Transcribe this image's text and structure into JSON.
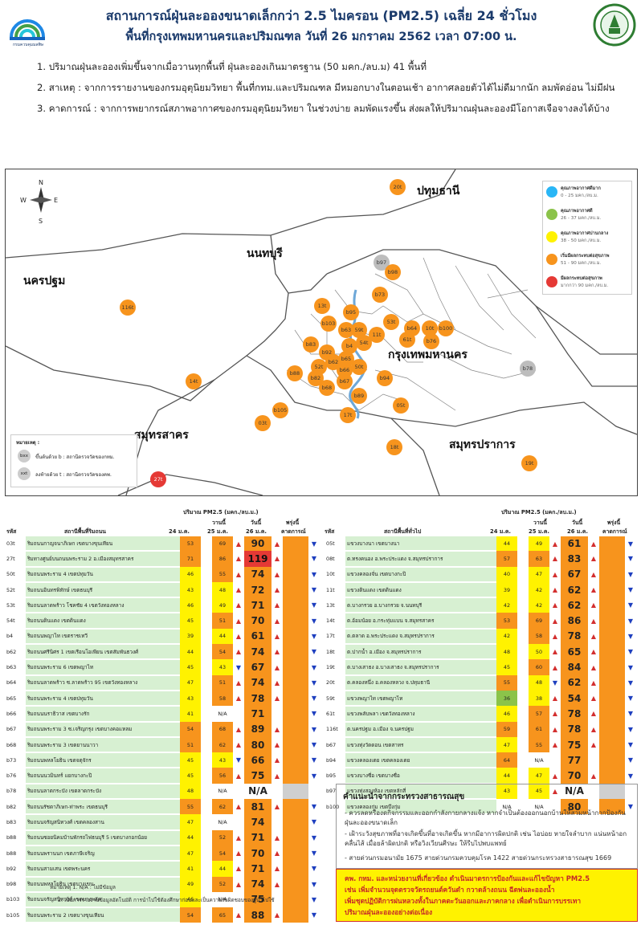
{
  "header": {
    "title_line1": "สถานการณ์ฝุ่นละอองขนาดเล็กกว่า 2.5 ไมครอน (PM2.5) เฉลี่ย 24 ชั่วโมง",
    "title_line2": "พื้นที่กรุงเทพมหานครและปริมณฑล วันที่ 26 มกราคม 2562 เวลา 07:00 น.",
    "logo_left_caption": "กรมควบคุมมลพิษ",
    "logo_right": "bangkok-seal"
  },
  "points": [
    "1. ปริมาณฝุ่นละอองเพิ่มขึ้นจากเมื่อวานทุกพื้นที่ ฝุ่นละอองเกินมาตรฐาน (50 มคก./ลบ.ม) 41 พื้นที่",
    "2. สาเหตุ :  จากการรายงานของกรมอุตุนิยมวิทยา พื้นที่กทม.และปริมณฑล มีหมอกบางในตอนเช้า อากาศลอยตัวได้ไม่ดีมากนัก ลมพัดอ่อน ไม่มีฝน",
    "3. คาดการณ์ : จากการพยากรณ์สภาพอากาศของกรมอุตุนิยมวิทยา ในช่วงบ่าย ลมพัดแรงขึ้น ส่งผลให้ปริมาณฝุ่นละอองมีโอกาสเจือจางลงได้บ้าง"
  ],
  "map": {
    "provinces": {
      "pathum": "ปทุมธานี",
      "nonthaburi": "นนทบุรี",
      "nakhon_pathom": "นครปฐม",
      "bangkok": "กรุงเทพมหานคร",
      "samut_sakhon": "สมุทรสาคร",
      "samut_prakan": "สมุทรปราการ"
    },
    "compass": {
      "n": "N",
      "s": "S",
      "e": "E",
      "w": "W"
    },
    "legend": [
      {
        "title": "คุณภาพอากาศดีมาก",
        "range": "0 - 25 มคก./ลบ.ม.",
        "color": "#29b6f6"
      },
      {
        "title": "คุณภาพอากาศดี",
        "range": "26 - 37 มคก./ลบ.ม.",
        "color": "#8bc34a"
      },
      {
        "title": "คุณภาพอากาศปานกลาง",
        "range": "38 - 50 มคก./ลบ.ม.",
        "color": "#fff200"
      },
      {
        "title": "เริ่มมีผลกระทบต่อสุขภาพ",
        "range": "51 - 90 มคก./ลบ.ม.",
        "color": "#f7941d"
      },
      {
        "title": "มีผลกระทบต่อสุขภาพ",
        "range": "มากกว่า 90 มคก./ลบ.ม.",
        "color": "#e53935"
      }
    ],
    "marker_legend": {
      "title": "หมายเหตุ :",
      "b_text": "ขึ้นต้นด้วย b : สถานีตรวจวัดของกทม.",
      "t_text": "ลงท้ายด้วย t : สถานีตรวจวัดของคพ.",
      "b_code": "bxx",
      "t_code": "xxt"
    },
    "stations": [
      "20t",
      "b97",
      "b98",
      "b73",
      "13t",
      "b95",
      "b103",
      "b63",
      "59t",
      "11t",
      "53t",
      "b64",
      "10t",
      "b100",
      "b83",
      "b4",
      "54t",
      "61t",
      "b76",
      "b92",
      "b65",
      "b62",
      "52t",
      "b66",
      "50t",
      "b88",
      "b82",
      "b67",
      "b94",
      "b68",
      "b78",
      "b89",
      "05t",
      "b105",
      "17t",
      "03t",
      "116t",
      "14t",
      "18t",
      "19t",
      "27t"
    ]
  },
  "table_header": {
    "amount": "ปริมาณ PM2.5 (มคก./ลบ.ม.)",
    "code": "รหัส",
    "station_road": "สถานีพื้นที่ริมถนน",
    "station_general": "สถานีพื้นที่ทั่วไป",
    "d24": "24 ม.ค.",
    "yesterday": "วานนี้",
    "d25": "25 ม.ค.",
    "today": "วันนี้",
    "d26": "26 ม.ค.",
    "tomorrow": "พรุ่งนี้",
    "forecast": "คาดการณ์"
  },
  "left_rows": [
    {
      "code": "03t",
      "name": "ริมถนนกาญจนาภิเษก เขตบางขุนเทียน",
      "a": "53",
      "b": "69",
      "c": "90"
    },
    {
      "code": "27t",
      "name": "ริมทางศูนย์บนถนนพระราม 2 อ.เมืองสมุทรสาคร",
      "a": "71",
      "b": "86",
      "c": "119"
    },
    {
      "code": "50t",
      "name": "ริมถนนพระราม 4 เขตปทุมวัน",
      "a": "46",
      "b": "55",
      "c": "74"
    },
    {
      "code": "52t",
      "name": "ริมถนนอินทรพิทักษ์ เขตธนบุรี",
      "a": "43",
      "b": "48",
      "c": "72"
    },
    {
      "code": "53t",
      "name": "ริมถนนลาดพร้าว โชคชัย 4 เขตวังทองหลาง",
      "a": "46",
      "b": "49",
      "c": "71"
    },
    {
      "code": "54t",
      "name": "ริมถนนดินแดง เขตดินแดง",
      "a": "45",
      "b": "51",
      "c": "70"
    },
    {
      "code": "b4",
      "name": "ริมถนนพญาไท เขตราชเทวี",
      "a": "39",
      "b": "44",
      "c": "61"
    },
    {
      "code": "b62",
      "name": "ริมถนนศรีนิศร 1 เขตเรือนโอเพียน เขตสัมพันธวงศ์",
      "a": "44",
      "b": "54",
      "c": "74"
    },
    {
      "code": "b63",
      "name": "ริมถนนพระราม 6 เขตพญาไท",
      "a": "45",
      "b": "43",
      "c": "67"
    },
    {
      "code": "b64",
      "name": "ริมถนนลาดพร้าว ซ.ลาดพร้าว 95 เขตวังทองหลาง",
      "a": "47",
      "b": "51",
      "c": "74"
    },
    {
      "code": "b65",
      "name": "ริมถนนพระราม 4 เขตปทุมวัน",
      "a": "43",
      "b": "58",
      "c": "78"
    },
    {
      "code": "b66",
      "name": "ริมถนนนราธิวาส เขตบางรัก",
      "a": "41",
      "b": "N/A",
      "c": "71"
    },
    {
      "code": "b67",
      "name": "ริมถนนพระราม 3 ซ.เจริญกรุง เขตบางคอแหลม",
      "a": "54",
      "b": "68",
      "c": "89"
    },
    {
      "code": "b68",
      "name": "ริมถนนพระราม 3 เขตยานนาวา",
      "a": "51",
      "b": "62",
      "c": "80"
    },
    {
      "code": "b73",
      "name": "ริมถนนพหลโยธิน เขตจตุจักร",
      "a": "45",
      "b": "43",
      "c": "66"
    },
    {
      "code": "b76",
      "name": "ริมถนนนวมินทร์ แยกบางกะปิ",
      "a": "45",
      "b": "56",
      "c": "75"
    },
    {
      "code": "b78",
      "name": "ริมถนนลาดกระบัง เขตลาดกระบัง",
      "a": "48",
      "b": "N/A",
      "c": "N/A"
    },
    {
      "code": "b82",
      "name": "ริมถนนรัชดาภิเษก-ท่าพระ เขตธนบุรี",
      "a": "55",
      "b": "62",
      "c": "81"
    },
    {
      "code": "b83",
      "name": "ริมถนนจรัญสนิทวงศ์ เขตคลองสาน",
      "a": "47",
      "b": "N/A",
      "c": "74"
    },
    {
      "code": "b88",
      "name": "ริมถนนซอยนิคมบ้านพักรถไฟธนบุรี 5 เขตบางกอกน้อย",
      "a": "44",
      "b": "52",
      "c": "71"
    },
    {
      "code": "b88",
      "name": "ริมถนนพรานนก เขตภาษีเจริญ",
      "a": "47",
      "b": "54",
      "c": "70"
    },
    {
      "code": "b92",
      "name": "ริมถนนสามเสน เขตพระนคร",
      "a": "41",
      "b": "44",
      "c": "71"
    },
    {
      "code": "b98",
      "name": "ริมถนนพหลโยธิน เขตบางเขน",
      "a": "49",
      "b": "52",
      "c": "74"
    },
    {
      "code": "b103",
      "name": "ริมถนนจรัญสนิทวงศ์ เขตบางพลัด",
      "a": "46",
      "b": "N/A",
      "c": "75"
    },
    {
      "code": "b105",
      "name": "ริมถนนพระราม 2 เขตบางขุนเทียน",
      "a": "54",
      "b": "65",
      "c": "88"
    }
  ],
  "right_rows": [
    {
      "code": "05t",
      "name": "แขวงบางนา เขตบางนา",
      "a": "44",
      "b": "49",
      "c": "61"
    },
    {
      "code": "08t",
      "name": "ต.ทรงคนอง อ.พระประแดง จ.สมุทรปราการ",
      "a": "57",
      "b": "63",
      "c": "83"
    },
    {
      "code": "10t",
      "name": "แขวงคลองจั่น เขตบางกะปิ",
      "a": "40",
      "b": "47",
      "c": "67"
    },
    {
      "code": "11t",
      "name": "แขวงดินแดง เขตดินแดง",
      "a": "39",
      "b": "42",
      "c": "62"
    },
    {
      "code": "13t",
      "name": "ต.บางกรวย อ.บางกรวย จ.นนทบุรี",
      "a": "42",
      "b": "42",
      "c": "62"
    },
    {
      "code": "14t",
      "name": "ต.อ้อมน้อย อ.กระทุ่มแบน จ.สมุทรสาคร",
      "a": "53",
      "b": "69",
      "c": "86"
    },
    {
      "code": "17t",
      "name": "ต.ตลาด อ.พระประแดง จ.สมุทรปราการ",
      "a": "42",
      "b": "58",
      "c": "78"
    },
    {
      "code": "18t",
      "name": "ต.ปากน้ำ อ.เมือง จ.สมุทรปราการ",
      "a": "48",
      "b": "50",
      "c": "65"
    },
    {
      "code": "19t",
      "name": "ต.บางเสาธง อ.บางเสาธง จ.สมุทรปราการ",
      "a": "45",
      "b": "60",
      "c": "84"
    },
    {
      "code": "20t",
      "name": "ต.คลองหนึ่ง อ.คลองหลวง จ.ปทุมธานี",
      "a": "55",
      "b": "48",
      "c": "62"
    },
    {
      "code": "59t",
      "name": "แขวงพญาไท เขตพญาไท",
      "a": "36",
      "b": "38",
      "c": "54"
    },
    {
      "code": "61t",
      "name": "แขวงพลับพลา เขตวังทองหลาง",
      "a": "46",
      "b": "57",
      "c": "78"
    },
    {
      "code": "116t",
      "name": "ต.นครปฐม อ.เมือง จ.นครปฐม",
      "a": "59",
      "b": "61",
      "c": "78"
    },
    {
      "code": "b67",
      "name": "แขวงทุ่งวัดดอน เขตสาทร",
      "a": "47",
      "b": "55",
      "c": "75"
    },
    {
      "code": "b94",
      "name": "แขวงคลองเตย เขตคลองเตย",
      "a": "64",
      "b": "N/A",
      "c": "77"
    },
    {
      "code": "b95",
      "name": "แขวงบางซื่อ เขตบางซื่อ",
      "a": "44",
      "b": "47",
      "c": "70"
    },
    {
      "code": "b97",
      "name": "แขวงทุ่งสองห้อง เขตหลักสี่",
      "a": "43",
      "b": "45",
      "c": "N/A"
    },
    {
      "code": "b100",
      "name": "แขวงคลองกุ่ม เขตบึงกุ่ม",
      "a": "N/A",
      "b": "N/A",
      "c": "80"
    }
  ],
  "notes": {
    "n1": "หมายเหตุ 1. N/A : ไม่มีข้อมูล",
    "n2": "2. เป็นการรายงานข้อมูลอัตโนมัติ การนำไปใช้ต้องศึกษาก่อนและเป็นความรับผิดชอบของผู้นำไปใช้"
  },
  "advice": {
    "title": "คำแนะนำจากกระทรวงสาธารณสุข",
    "p1": "- ควรลดหรืองดกิจกรรมและออกกำลังกายกลางแจ้ง หากจำเป็นต้องออกนอกบ้านให้สวมหน้ากากป้องกันฝุ่นละอองขนาดเล็ก",
    "p2": "- เฝ้าระวังสุขภาพที่อาจเกิดขึ้นที่อาจเกิดขึ้น หากมีอาการผิดปกติ เช่น ไอบ่อย หายใจลำบาก แน่นหน้าอก คลื่นไส้ เมื่อยล้าผิดปกติ หรือวิงเวียนศีรษะ ให้รีบไปพบแพทย์",
    "p3": "- สายด่วนกรมอนามัย  1675 สายด่วนกรมควบคุมโรค 1422 สายด่วนกระทรวงสาธารณสุข 1669"
  },
  "warning": {
    "l1": "คพ. กทม. และหน่วยงานที่เกี่ยวข้อง ดำเนินมาตรการป้องกันและแก้ไขปัญหา PM2.5",
    "l2": "เช่น เพิ่มจำนวนจุดตรวจวัดรถยนต์ควันดำ กวาดล้างถนน ฉีดพ่นละอองน้ำ",
    "l3": "เพิ่มชุดปฏิบัติการฝนหลวงทั้งในภาคตะวันออกและภาคกลาง เพื่อดำเนินการบรรเทา",
    "l4": "ปริมาณฝุ่นละอองอย่างต่อเนื่อง"
  }
}
